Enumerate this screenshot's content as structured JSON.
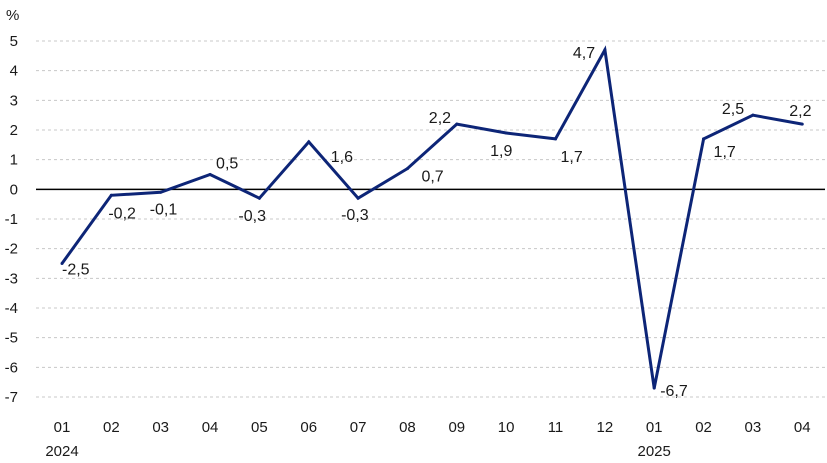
{
  "chart_data": {
    "type": "line",
    "unit": "%",
    "categories": [
      "01",
      "02",
      "03",
      "04",
      "05",
      "06",
      "07",
      "08",
      "09",
      "10",
      "11",
      "12",
      "01",
      "02",
      "03",
      "04"
    ],
    "year_labels": [
      {
        "index": 0,
        "label": "2024"
      },
      {
        "index": 12,
        "label": "2025"
      }
    ],
    "series": [
      {
        "values": [
          -2.5,
          -0.2,
          -0.1,
          0.5,
          -0.3,
          1.6,
          -0.3,
          0.7,
          2.2,
          1.9,
          1.7,
          4.7,
          -6.7,
          1.7,
          2.5,
          2.2
        ],
        "color": "#0d2577"
      }
    ],
    "data_labels": [
      "-2,5",
      "-0,2",
      "-0,1",
      "0,5",
      "-0,3",
      "1,6",
      "-0,3",
      "0,7",
      "2,2",
      "1,9",
      "1,7",
      "4,7",
      "-6,7",
      "1,7",
      "2,5",
      "2,2"
    ],
    "y_ticks": [
      5,
      4,
      3,
      2,
      1,
      0,
      -1,
      -2,
      -3,
      -4,
      -5,
      -6,
      -7
    ],
    "y_tick_labels": [
      "5",
      "4",
      "3",
      "2",
      "1",
      "0",
      "-1",
      "-2",
      "-3",
      "-4",
      "-5",
      "-6",
      "-7"
    ],
    "ylim": [
      -7,
      5
    ],
    "grid": true,
    "grid_style": "dashed",
    "legend": false,
    "colors": {
      "line": "#0d2577",
      "grid": "#c8c8c8",
      "zero_line": "#000000",
      "text": "#1a1a1a"
    }
  }
}
